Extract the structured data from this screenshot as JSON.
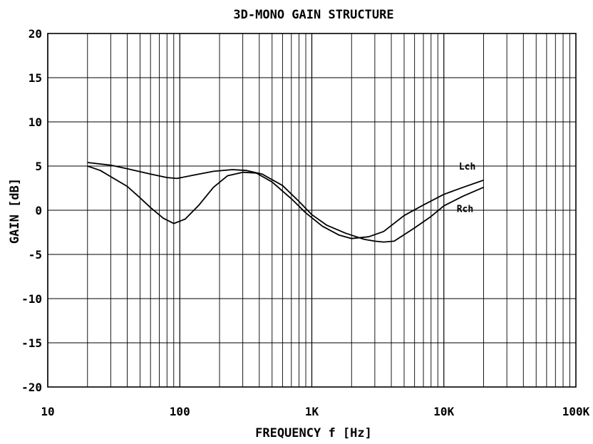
{
  "chart_data": {
    "type": "line",
    "title": "3D-MONO GAIN STRUCTURE",
    "xlabel": "FREQUENCY f [Hz]",
    "ylabel": "GAIN [dB]",
    "x_scale": "log",
    "xlim": [
      10,
      100000
    ],
    "ylim": [
      -20,
      20
    ],
    "grid": true,
    "x_ticks": [
      {
        "value": 10,
        "label": "10"
      },
      {
        "value": 100,
        "label": "100"
      },
      {
        "value": 1000,
        "label": "1K"
      },
      {
        "value": 10000,
        "label": "10K"
      },
      {
        "value": 100000,
        "label": "100K"
      }
    ],
    "y_ticks": [
      {
        "value": 20,
        "label": "20"
      },
      {
        "value": 15,
        "label": "15"
      },
      {
        "value": 10,
        "label": "10"
      },
      {
        "value": 5,
        "label": "5"
      },
      {
        "value": 0,
        "label": "0"
      },
      {
        "value": -5,
        "label": "-5"
      },
      {
        "value": -10,
        "label": "-10"
      },
      {
        "value": -15,
        "label": "-15"
      },
      {
        "value": -20,
        "label": "-20"
      }
    ],
    "series": [
      {
        "name": "Lch",
        "label_at": {
          "x": 13000,
          "y": 4.6
        },
        "points": [
          [
            20,
            5.4
          ],
          [
            30,
            5.1
          ],
          [
            40,
            4.7
          ],
          [
            60,
            4.1
          ],
          [
            80,
            3.7
          ],
          [
            95,
            3.6
          ],
          [
            130,
            4.0
          ],
          [
            180,
            4.4
          ],
          [
            250,
            4.6
          ],
          [
            320,
            4.5
          ],
          [
            420,
            4.1
          ],
          [
            600,
            2.8
          ],
          [
            800,
            1.0
          ],
          [
            1000,
            -0.5
          ],
          [
            1300,
            -1.7
          ],
          [
            1800,
            -2.6
          ],
          [
            2500,
            -3.3
          ],
          [
            3000,
            -3.5
          ],
          [
            3500,
            -3.6
          ],
          [
            4200,
            -3.5
          ],
          [
            6000,
            -2.0
          ],
          [
            8000,
            -0.7
          ],
          [
            10000,
            0.5
          ],
          [
            14000,
            1.6
          ],
          [
            20000,
            2.6
          ]
        ]
      },
      {
        "name": "Rch",
        "label_at": {
          "x": 12500,
          "y": -0.2
        },
        "points": [
          [
            20,
            5.0
          ],
          [
            25,
            4.5
          ],
          [
            30,
            3.8
          ],
          [
            40,
            2.7
          ],
          [
            50,
            1.4
          ],
          [
            60,
            0.3
          ],
          [
            75,
            -0.9
          ],
          [
            90,
            -1.5
          ],
          [
            110,
            -1.0
          ],
          [
            140,
            0.6
          ],
          [
            180,
            2.6
          ],
          [
            230,
            3.9
          ],
          [
            300,
            4.3
          ],
          [
            380,
            4.2
          ],
          [
            500,
            3.2
          ],
          [
            700,
            1.3
          ],
          [
            900,
            -0.3
          ],
          [
            1200,
            -1.8
          ],
          [
            1600,
            -2.8
          ],
          [
            2000,
            -3.2
          ],
          [
            2700,
            -3.0
          ],
          [
            3500,
            -2.4
          ],
          [
            5000,
            -0.6
          ],
          [
            7000,
            0.6
          ],
          [
            10000,
            1.8
          ],
          [
            14000,
            2.6
          ],
          [
            20000,
            3.4
          ]
        ]
      }
    ]
  }
}
